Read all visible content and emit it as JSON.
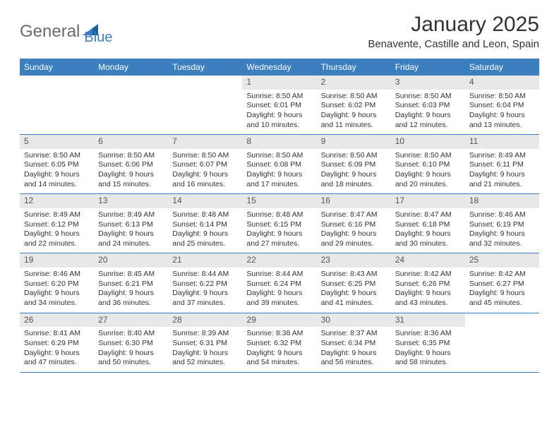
{
  "logo": {
    "word1": "General",
    "word2": "Blue"
  },
  "title": "January 2025",
  "location": "Benavente, Castille and Leon, Spain",
  "colors": {
    "header_bg": "#3b7fbf",
    "daynum_bg": "#e8e8e8",
    "rule": "#3b7fbf",
    "text": "#333333",
    "logo_gray": "#6b6b6b",
    "logo_blue": "#3b7fbf",
    "page_bg": "#ffffff"
  },
  "day_names": [
    "Sunday",
    "Monday",
    "Tuesday",
    "Wednesday",
    "Thursday",
    "Friday",
    "Saturday"
  ],
  "weeks": [
    [
      {
        "empty": true
      },
      {
        "empty": true
      },
      {
        "empty": true
      },
      {
        "n": "1",
        "sr": "Sunrise: 8:50 AM",
        "ss": "Sunset: 6:01 PM",
        "d1": "Daylight: 9 hours",
        "d2": "and 10 minutes."
      },
      {
        "n": "2",
        "sr": "Sunrise: 8:50 AM",
        "ss": "Sunset: 6:02 PM",
        "d1": "Daylight: 9 hours",
        "d2": "and 11 minutes."
      },
      {
        "n": "3",
        "sr": "Sunrise: 8:50 AM",
        "ss": "Sunset: 6:03 PM",
        "d1": "Daylight: 9 hours",
        "d2": "and 12 minutes."
      },
      {
        "n": "4",
        "sr": "Sunrise: 8:50 AM",
        "ss": "Sunset: 6:04 PM",
        "d1": "Daylight: 9 hours",
        "d2": "and 13 minutes."
      }
    ],
    [
      {
        "n": "5",
        "sr": "Sunrise: 8:50 AM",
        "ss": "Sunset: 6:05 PM",
        "d1": "Daylight: 9 hours",
        "d2": "and 14 minutes."
      },
      {
        "n": "6",
        "sr": "Sunrise: 8:50 AM",
        "ss": "Sunset: 6:06 PM",
        "d1": "Daylight: 9 hours",
        "d2": "and 15 minutes."
      },
      {
        "n": "7",
        "sr": "Sunrise: 8:50 AM",
        "ss": "Sunset: 6:07 PM",
        "d1": "Daylight: 9 hours",
        "d2": "and 16 minutes."
      },
      {
        "n": "8",
        "sr": "Sunrise: 8:50 AM",
        "ss": "Sunset: 6:08 PM",
        "d1": "Daylight: 9 hours",
        "d2": "and 17 minutes."
      },
      {
        "n": "9",
        "sr": "Sunrise: 8:50 AM",
        "ss": "Sunset: 6:09 PM",
        "d1": "Daylight: 9 hours",
        "d2": "and 18 minutes."
      },
      {
        "n": "10",
        "sr": "Sunrise: 8:50 AM",
        "ss": "Sunset: 6:10 PM",
        "d1": "Daylight: 9 hours",
        "d2": "and 20 minutes."
      },
      {
        "n": "11",
        "sr": "Sunrise: 8:49 AM",
        "ss": "Sunset: 6:11 PM",
        "d1": "Daylight: 9 hours",
        "d2": "and 21 minutes."
      }
    ],
    [
      {
        "n": "12",
        "sr": "Sunrise: 8:49 AM",
        "ss": "Sunset: 6:12 PM",
        "d1": "Daylight: 9 hours",
        "d2": "and 22 minutes."
      },
      {
        "n": "13",
        "sr": "Sunrise: 8:49 AM",
        "ss": "Sunset: 6:13 PM",
        "d1": "Daylight: 9 hours",
        "d2": "and 24 minutes."
      },
      {
        "n": "14",
        "sr": "Sunrise: 8:48 AM",
        "ss": "Sunset: 6:14 PM",
        "d1": "Daylight: 9 hours",
        "d2": "and 25 minutes."
      },
      {
        "n": "15",
        "sr": "Sunrise: 8:48 AM",
        "ss": "Sunset: 6:15 PM",
        "d1": "Daylight: 9 hours",
        "d2": "and 27 minutes."
      },
      {
        "n": "16",
        "sr": "Sunrise: 8:47 AM",
        "ss": "Sunset: 6:16 PM",
        "d1": "Daylight: 9 hours",
        "d2": "and 29 minutes."
      },
      {
        "n": "17",
        "sr": "Sunrise: 8:47 AM",
        "ss": "Sunset: 6:18 PM",
        "d1": "Daylight: 9 hours",
        "d2": "and 30 minutes."
      },
      {
        "n": "18",
        "sr": "Sunrise: 8:46 AM",
        "ss": "Sunset: 6:19 PM",
        "d1": "Daylight: 9 hours",
        "d2": "and 32 minutes."
      }
    ],
    [
      {
        "n": "19",
        "sr": "Sunrise: 8:46 AM",
        "ss": "Sunset: 6:20 PM",
        "d1": "Daylight: 9 hours",
        "d2": "and 34 minutes."
      },
      {
        "n": "20",
        "sr": "Sunrise: 8:45 AM",
        "ss": "Sunset: 6:21 PM",
        "d1": "Daylight: 9 hours",
        "d2": "and 36 minutes."
      },
      {
        "n": "21",
        "sr": "Sunrise: 8:44 AM",
        "ss": "Sunset: 6:22 PM",
        "d1": "Daylight: 9 hours",
        "d2": "and 37 minutes."
      },
      {
        "n": "22",
        "sr": "Sunrise: 8:44 AM",
        "ss": "Sunset: 6:24 PM",
        "d1": "Daylight: 9 hours",
        "d2": "and 39 minutes."
      },
      {
        "n": "23",
        "sr": "Sunrise: 8:43 AM",
        "ss": "Sunset: 6:25 PM",
        "d1": "Daylight: 9 hours",
        "d2": "and 41 minutes."
      },
      {
        "n": "24",
        "sr": "Sunrise: 8:42 AM",
        "ss": "Sunset: 6:26 PM",
        "d1": "Daylight: 9 hours",
        "d2": "and 43 minutes."
      },
      {
        "n": "25",
        "sr": "Sunrise: 8:42 AM",
        "ss": "Sunset: 6:27 PM",
        "d1": "Daylight: 9 hours",
        "d2": "and 45 minutes."
      }
    ],
    [
      {
        "n": "26",
        "sr": "Sunrise: 8:41 AM",
        "ss": "Sunset: 6:29 PM",
        "d1": "Daylight: 9 hours",
        "d2": "and 47 minutes."
      },
      {
        "n": "27",
        "sr": "Sunrise: 8:40 AM",
        "ss": "Sunset: 6:30 PM",
        "d1": "Daylight: 9 hours",
        "d2": "and 50 minutes."
      },
      {
        "n": "28",
        "sr": "Sunrise: 8:39 AM",
        "ss": "Sunset: 6:31 PM",
        "d1": "Daylight: 9 hours",
        "d2": "and 52 minutes."
      },
      {
        "n": "29",
        "sr": "Sunrise: 8:38 AM",
        "ss": "Sunset: 6:32 PM",
        "d1": "Daylight: 9 hours",
        "d2": "and 54 minutes."
      },
      {
        "n": "30",
        "sr": "Sunrise: 8:37 AM",
        "ss": "Sunset: 6:34 PM",
        "d1": "Daylight: 9 hours",
        "d2": "and 56 minutes."
      },
      {
        "n": "31",
        "sr": "Sunrise: 8:36 AM",
        "ss": "Sunset: 6:35 PM",
        "d1": "Daylight: 9 hours",
        "d2": "and 58 minutes."
      },
      {
        "empty": true
      }
    ]
  ]
}
